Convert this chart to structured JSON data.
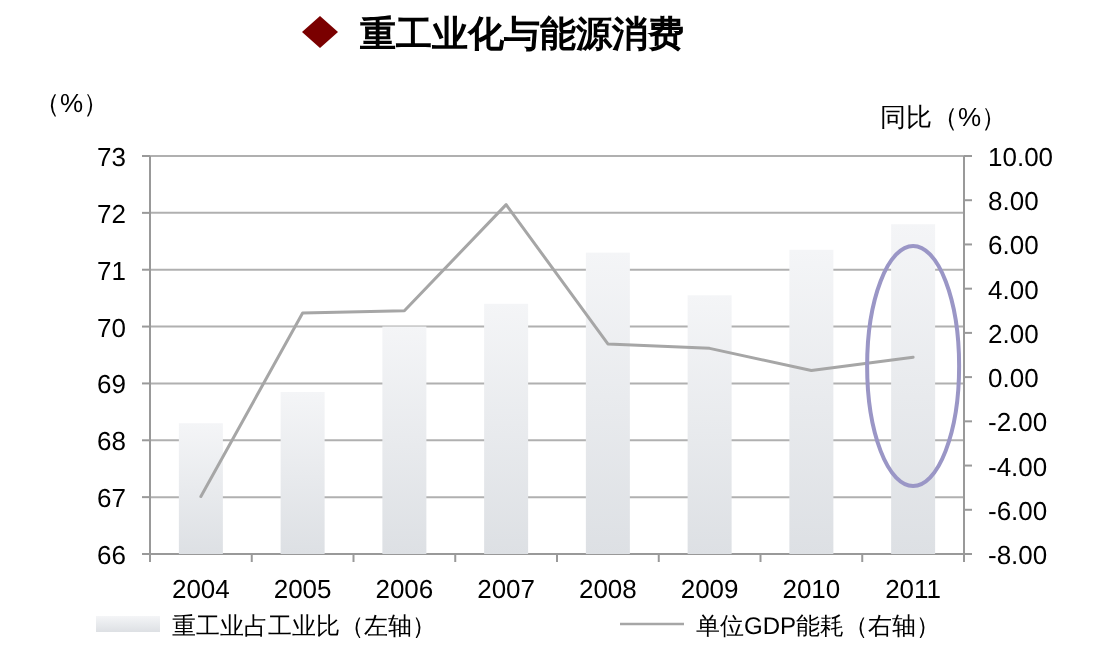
{
  "chart_data": {
    "type": "bar",
    "title": "重工业化与能源消费",
    "ylabel": "（%）",
    "y2label": "同比（%）",
    "categories": [
      "2004",
      "2005",
      "2006",
      "2007",
      "2008",
      "2009",
      "2010",
      "2011"
    ],
    "series": [
      {
        "name": "重工业占工业比（左轴）",
        "color": "#dde0e4",
        "values": [
          68.3,
          68.85,
          70.0,
          70.4,
          71.3,
          70.55,
          71.35,
          71.8
        ]
      },
      {
        "name": "单位GDP能耗（右轴）",
        "type": "line",
        "axis": "y2",
        "color": "#a6a6a6",
        "values": [
          -5.4,
          2.9,
          3.0,
          7.8,
          1.5,
          1.3,
          0.3,
          0.9
        ]
      }
    ],
    "ylim": [
      66,
      73
    ],
    "yticks": [
      66,
      67,
      68,
      69,
      70,
      71,
      72,
      73
    ],
    "y2lim": [
      -8,
      10
    ],
    "y2ticks": [
      {
        "value": -8,
        "label": "-8.00"
      },
      {
        "value": -6,
        "label": "-6.00"
      },
      {
        "value": -4,
        "label": "-4.00"
      },
      {
        "value": -2,
        "label": "-2.00"
      },
      {
        "value": 0,
        "label": "0.00"
      },
      {
        "value": 2,
        "label": "2.00"
      },
      {
        "value": 4,
        "label": "4.00"
      },
      {
        "value": 6,
        "label": "6.00"
      },
      {
        "value": 8,
        "label": "8.00"
      },
      {
        "value": 10,
        "label": "10.00"
      }
    ],
    "grid": "y",
    "legend": "bottom",
    "marker": "none",
    "line_style": "solid"
  }
}
